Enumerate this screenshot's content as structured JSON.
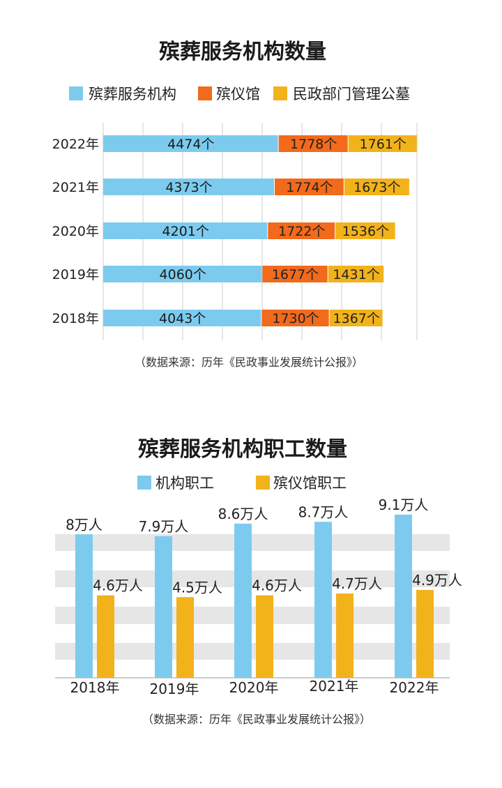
{
  "source_note": "（数据来源：历年《民政事业发展统计公报》）",
  "colors": {
    "blue": "#7ccbef",
    "orange": "#f26a1b",
    "yellow": "#f2b21a",
    "band": "#e6e6e6",
    "grid": "#cccccc"
  },
  "chart_data": [
    {
      "type": "bar",
      "orientation": "horizontal",
      "stacked": true,
      "title": "殡葬服务机构数量",
      "categories": [
        "2022年",
        "2021年",
        "2020年",
        "2019年",
        "2018年"
      ],
      "series": [
        {
          "name": "殡葬服务机构",
          "values": [
            4474,
            4373,
            4201,
            4060,
            4043
          ],
          "labels": [
            "4474个",
            "4373个",
            "4201个",
            "4060个",
            "4043个"
          ],
          "color": "#7ccbef"
        },
        {
          "name": "殡仪馆",
          "values": [
            1778,
            1774,
            1722,
            1677,
            1730
          ],
          "labels": [
            "1778个",
            "1774个",
            "1722个",
            "1677个",
            "1730个"
          ],
          "color": "#f26a1b"
        },
        {
          "name": "民政部门管理公墓",
          "values": [
            1761,
            1673,
            1536,
            1431,
            1367
          ],
          "labels": [
            "1761个",
            "1673个",
            "1536个",
            "1431个",
            "1367个"
          ],
          "color": "#f2b21a"
        }
      ],
      "xlim": [
        0,
        8000
      ],
      "grid": true,
      "legend": "top",
      "source": "（数据来源：历年《民政事业发展统计公报》）"
    },
    {
      "type": "bar",
      "orientation": "vertical",
      "title": "殡葬服务机构职工数量",
      "categories": [
        "2018年",
        "2019年",
        "2020年",
        "2021年",
        "2022年"
      ],
      "series": [
        {
          "name": "机构职工",
          "values": [
            8,
            7.9,
            8.6,
            8.7,
            9.1
          ],
          "labels": [
            "8万人",
            "7.9万人",
            "8.6万人",
            "8.7万人",
            "9.1万人"
          ],
          "color": "#7ccbef"
        },
        {
          "name": "殡仪馆职工",
          "values": [
            4.6,
            4.5,
            4.6,
            4.7,
            4.9
          ],
          "labels": [
            "4.6万人",
            "4.5万人",
            "4.6万人",
            "4.7万人",
            "4.9万人"
          ],
          "color": "#f2b21a"
        }
      ],
      "ylim": [
        0,
        10
      ],
      "grid": "alternating bands",
      "legend": "top",
      "source": "（数据来源：历年《民政事业发展统计公报》）"
    }
  ]
}
